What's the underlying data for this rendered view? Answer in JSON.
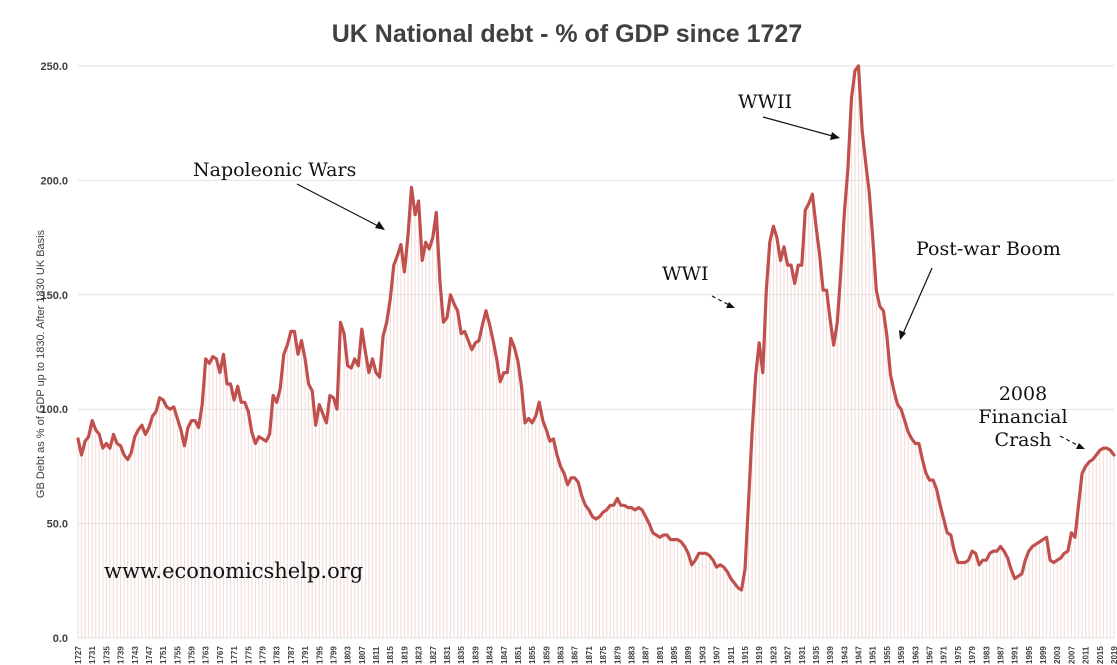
{
  "chart_data": {
    "type": "line",
    "title": "UK National debt - % of GDP since 1727",
    "ylabel": "GB Debt as % of GDP up to 1830. After 1830 UK Basis",
    "xlabel": "",
    "ylim": [
      0,
      250
    ],
    "yticks": [
      "0.0",
      "50.0",
      "100.0",
      "150.0",
      "200.0",
      "250.0"
    ],
    "grid": true,
    "xlim": [
      1727,
      2019
    ],
    "xtick_years": [
      1727,
      1731,
      1735,
      1739,
      1743,
      1747,
      1751,
      1755,
      1759,
      1763,
      1767,
      1771,
      1775,
      1779,
      1783,
      1787,
      1791,
      1795,
      1799,
      1803,
      1807,
      1811,
      1815,
      1819,
      1823,
      1827,
      1831,
      1835,
      1839,
      1843,
      1847,
      1851,
      1855,
      1859,
      1863,
      1867,
      1871,
      1875,
      1879,
      1883,
      1887,
      1891,
      1895,
      1899,
      1903,
      1907,
      1911,
      1915,
      1919,
      1923,
      1927,
      1931,
      1935,
      1939,
      1943,
      1947,
      1951,
      1955,
      1959,
      1963,
      1967,
      1971,
      1975,
      1979,
      1983,
      1987,
      1991,
      1995,
      1999,
      2003,
      2007,
      2011,
      2015,
      2019
    ],
    "series": [
      {
        "color": "#c0504d",
        "points": [
          [
            1727,
            87
          ],
          [
            1728,
            80
          ],
          [
            1729,
            86
          ],
          [
            1730,
            88
          ],
          [
            1731,
            95
          ],
          [
            1732,
            91
          ],
          [
            1733,
            89
          ],
          [
            1734,
            83
          ],
          [
            1735,
            85
          ],
          [
            1736,
            83
          ],
          [
            1737,
            89
          ],
          [
            1738,
            85
          ],
          [
            1739,
            84
          ],
          [
            1740,
            80
          ],
          [
            1741,
            78
          ],
          [
            1742,
            81
          ],
          [
            1743,
            88
          ],
          [
            1744,
            91
          ],
          [
            1745,
            93
          ],
          [
            1746,
            89
          ],
          [
            1747,
            92
          ],
          [
            1748,
            97
          ],
          [
            1749,
            99
          ],
          [
            1750,
            105
          ],
          [
            1751,
            104
          ],
          [
            1752,
            101
          ],
          [
            1753,
            100
          ],
          [
            1754,
            101
          ],
          [
            1755,
            96
          ],
          [
            1756,
            91
          ],
          [
            1757,
            84
          ],
          [
            1758,
            92
          ],
          [
            1759,
            95
          ],
          [
            1760,
            95
          ],
          [
            1761,
            92
          ],
          [
            1762,
            102
          ],
          [
            1763,
            122
          ],
          [
            1764,
            120
          ],
          [
            1765,
            123
          ],
          [
            1766,
            122
          ],
          [
            1767,
            116
          ],
          [
            1768,
            124
          ],
          [
            1769,
            111
          ],
          [
            1770,
            111
          ],
          [
            1771,
            104
          ],
          [
            1772,
            110
          ],
          [
            1773,
            103
          ],
          [
            1774,
            103
          ],
          [
            1775,
            99
          ],
          [
            1776,
            90
          ],
          [
            1777,
            85
          ],
          [
            1778,
            88
          ],
          [
            1779,
            87
          ],
          [
            1780,
            86
          ],
          [
            1781,
            89
          ],
          [
            1782,
            106
          ],
          [
            1783,
            103
          ],
          [
            1784,
            109
          ],
          [
            1785,
            124
          ],
          [
            1786,
            128
          ],
          [
            1787,
            134
          ],
          [
            1788,
            134
          ],
          [
            1789,
            124
          ],
          [
            1790,
            130
          ],
          [
            1791,
            122
          ],
          [
            1792,
            111
          ],
          [
            1793,
            108
          ],
          [
            1794,
            93
          ],
          [
            1795,
            102
          ],
          [
            1796,
            98
          ],
          [
            1797,
            94
          ],
          [
            1798,
            106
          ],
          [
            1799,
            105
          ],
          [
            1800,
            100
          ],
          [
            1801,
            138
          ],
          [
            1802,
            133
          ],
          [
            1803,
            119
          ],
          [
            1804,
            118
          ],
          [
            1805,
            122
          ],
          [
            1806,
            119
          ],
          [
            1807,
            135
          ],
          [
            1808,
            125
          ],
          [
            1809,
            116
          ],
          [
            1810,
            122
          ],
          [
            1811,
            116
          ],
          [
            1812,
            114
          ],
          [
            1813,
            132
          ],
          [
            1814,
            138
          ],
          [
            1815,
            148
          ],
          [
            1816,
            163
          ],
          [
            1817,
            167
          ],
          [
            1818,
            172
          ],
          [
            1819,
            160
          ],
          [
            1820,
            176
          ],
          [
            1821,
            197
          ],
          [
            1822,
            185
          ],
          [
            1823,
            191
          ],
          [
            1824,
            165
          ],
          [
            1825,
            173
          ],
          [
            1826,
            170
          ],
          [
            1827,
            175
          ],
          [
            1828,
            186
          ],
          [
            1829,
            156
          ],
          [
            1830,
            138
          ],
          [
            1831,
            140
          ],
          [
            1832,
            150
          ],
          [
            1833,
            146
          ],
          [
            1834,
            143
          ],
          [
            1835,
            133
          ],
          [
            1836,
            134
          ],
          [
            1837,
            130
          ],
          [
            1838,
            126
          ],
          [
            1839,
            129
          ],
          [
            1840,
            130
          ],
          [
            1841,
            137
          ],
          [
            1842,
            143
          ],
          [
            1843,
            137
          ],
          [
            1844,
            130
          ],
          [
            1845,
            122
          ],
          [
            1846,
            112
          ],
          [
            1847,
            116
          ],
          [
            1848,
            116
          ],
          [
            1849,
            131
          ],
          [
            1850,
            127
          ],
          [
            1851,
            121
          ],
          [
            1852,
            110
          ],
          [
            1853,
            94
          ],
          [
            1854,
            96
          ],
          [
            1855,
            94
          ],
          [
            1856,
            97
          ],
          [
            1857,
            103
          ],
          [
            1858,
            95
          ],
          [
            1859,
            91
          ],
          [
            1860,
            86
          ],
          [
            1861,
            87
          ],
          [
            1862,
            80
          ],
          [
            1863,
            75
          ],
          [
            1864,
            72
          ],
          [
            1865,
            67
          ],
          [
            1866,
            70
          ],
          [
            1867,
            70
          ],
          [
            1868,
            68
          ],
          [
            1869,
            62
          ],
          [
            1870,
            58
          ],
          [
            1871,
            56
          ],
          [
            1872,
            53
          ],
          [
            1873,
            52
          ],
          [
            1874,
            53
          ],
          [
            1875,
            55
          ],
          [
            1876,
            56
          ],
          [
            1877,
            58
          ],
          [
            1878,
            58
          ],
          [
            1879,
            61
          ],
          [
            1880,
            58
          ],
          [
            1881,
            58
          ],
          [
            1882,
            57
          ],
          [
            1883,
            57
          ],
          [
            1884,
            56
          ],
          [
            1885,
            57
          ],
          [
            1886,
            56
          ],
          [
            1887,
            53
          ],
          [
            1888,
            50
          ],
          [
            1889,
            46
          ],
          [
            1890,
            45
          ],
          [
            1891,
            44
          ],
          [
            1892,
            45
          ],
          [
            1893,
            45
          ],
          [
            1894,
            43
          ],
          [
            1895,
            43
          ],
          [
            1896,
            43
          ],
          [
            1897,
            42
          ],
          [
            1898,
            40
          ],
          [
            1899,
            37
          ],
          [
            1900,
            32
          ],
          [
            1901,
            34
          ],
          [
            1902,
            37
          ],
          [
            1903,
            37
          ],
          [
            1904,
            37
          ],
          [
            1905,
            36
          ],
          [
            1906,
            34
          ],
          [
            1907,
            31
          ],
          [
            1908,
            32
          ],
          [
            1909,
            31
          ],
          [
            1910,
            29
          ],
          [
            1911,
            26
          ],
          [
            1912,
            24
          ],
          [
            1913,
            22
          ],
          [
            1914,
            21
          ],
          [
            1915,
            30
          ],
          [
            1916,
            60
          ],
          [
            1917,
            90
          ],
          [
            1918,
            115
          ],
          [
            1919,
            129
          ],
          [
            1920,
            116
          ],
          [
            1921,
            152
          ],
          [
            1922,
            173
          ],
          [
            1923,
            180
          ],
          [
            1924,
            175
          ],
          [
            1925,
            165
          ],
          [
            1926,
            171
          ],
          [
            1927,
            163
          ],
          [
            1928,
            163
          ],
          [
            1929,
            155
          ],
          [
            1930,
            163
          ],
          [
            1931,
            163
          ],
          [
            1932,
            187
          ],
          [
            1933,
            190
          ],
          [
            1934,
            194
          ],
          [
            1935,
            180
          ],
          [
            1936,
            168
          ],
          [
            1937,
            152
          ],
          [
            1938,
            152
          ],
          [
            1939,
            139
          ],
          [
            1940,
            128
          ],
          [
            1941,
            138
          ],
          [
            1942,
            160
          ],
          [
            1943,
            186
          ],
          [
            1944,
            205
          ],
          [
            1945,
            236
          ],
          [
            1946,
            248
          ],
          [
            1947,
            250
          ],
          [
            1948,
            222
          ],
          [
            1949,
            208
          ],
          [
            1950,
            195
          ],
          [
            1951,
            175
          ],
          [
            1952,
            152
          ],
          [
            1953,
            145
          ],
          [
            1954,
            143
          ],
          [
            1955,
            132
          ],
          [
            1956,
            115
          ],
          [
            1957,
            108
          ],
          [
            1958,
            102
          ],
          [
            1959,
            100
          ],
          [
            1960,
            95
          ],
          [
            1961,
            90
          ],
          [
            1962,
            87
          ],
          [
            1963,
            85
          ],
          [
            1964,
            85
          ],
          [
            1965,
            78
          ],
          [
            1966,
            72
          ],
          [
            1967,
            69
          ],
          [
            1968,
            69
          ],
          [
            1969,
            65
          ],
          [
            1970,
            58
          ],
          [
            1971,
            52
          ],
          [
            1972,
            46
          ],
          [
            1973,
            45
          ],
          [
            1974,
            38
          ],
          [
            1975,
            33
          ],
          [
            1976,
            33
          ],
          [
            1977,
            33
          ],
          [
            1978,
            34
          ],
          [
            1979,
            38
          ],
          [
            1980,
            37
          ],
          [
            1981,
            32
          ],
          [
            1982,
            34
          ],
          [
            1983,
            34
          ],
          [
            1984,
            37
          ],
          [
            1985,
            38
          ],
          [
            1986,
            38
          ],
          [
            1987,
            40
          ],
          [
            1988,
            38
          ],
          [
            1989,
            35
          ],
          [
            1990,
            30
          ],
          [
            1991,
            26
          ],
          [
            1992,
            27
          ],
          [
            1993,
            28
          ],
          [
            1994,
            34
          ],
          [
            1995,
            38
          ],
          [
            1996,
            40
          ],
          [
            1997,
            41
          ],
          [
            1998,
            42
          ],
          [
            1999,
            43
          ],
          [
            2000,
            44
          ],
          [
            2001,
            34
          ],
          [
            2002,
            33
          ],
          [
            2003,
            34
          ],
          [
            2004,
            35
          ],
          [
            2005,
            37
          ],
          [
            2006,
            38
          ],
          [
            2007,
            46
          ],
          [
            2008,
            44
          ],
          [
            2009,
            58
          ],
          [
            2010,
            72
          ],
          [
            2011,
            75
          ],
          [
            2012,
            77
          ],
          [
            2013,
            78
          ],
          [
            2014,
            80
          ],
          [
            2015,
            82
          ],
          [
            2016,
            83
          ],
          [
            2017,
            83
          ],
          [
            2018,
            82
          ],
          [
            2019,
            80
          ]
        ]
      }
    ],
    "annotations": [
      {
        "text": "Napoleonic Wars"
      },
      {
        "text": "WWII"
      },
      {
        "text": "WWI"
      },
      {
        "text": "Post-war Boom"
      },
      {
        "text": "2008"
      },
      {
        "text": "Financial"
      },
      {
        "text": "Crash"
      }
    ],
    "watermark": "www.economicshelp.org"
  }
}
